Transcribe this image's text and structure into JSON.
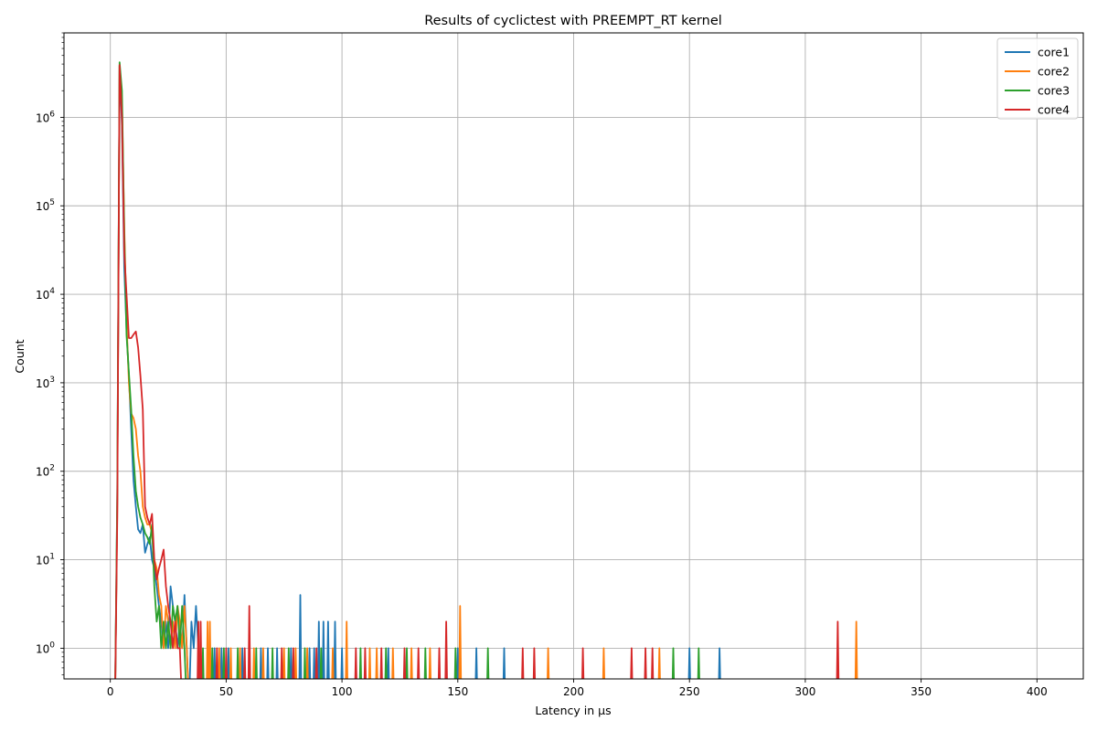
{
  "chart_data": {
    "type": "line",
    "title": "Results of cyclictest with PREEMPT_RT kernel",
    "xlabel": "Latency in µs",
    "ylabel": "Count",
    "xlim": [
      -20,
      420
    ],
    "ylim": [
      0.45,
      9000000
    ],
    "yscale": "log",
    "grid": true,
    "legend_position": "top-right",
    "x_ticks": [
      0,
      50,
      100,
      150,
      200,
      250,
      300,
      350,
      400
    ],
    "y_ticks": [
      {
        "value": 1,
        "mantissa": "10",
        "exponent": "0"
      },
      {
        "value": 10,
        "mantissa": "10",
        "exponent": "1"
      },
      {
        "value": 100,
        "mantissa": "10",
        "exponent": "2"
      },
      {
        "value": 1000,
        "mantissa": "10",
        "exponent": "3"
      },
      {
        "value": 10000,
        "mantissa": "10",
        "exponent": "4"
      },
      {
        "value": 100000,
        "mantissa": "10",
        "exponent": "5"
      },
      {
        "value": 1000000,
        "mantissa": "10",
        "exponent": "6"
      }
    ],
    "series": [
      {
        "name": "core1",
        "color": "#1f77b4",
        "curve": [
          [
            2,
            0
          ],
          [
            3,
            50
          ],
          [
            4,
            3800000
          ],
          [
            5,
            800000
          ],
          [
            6,
            20000
          ],
          [
            7,
            4000
          ],
          [
            8,
            1200
          ],
          [
            9,
            300
          ],
          [
            10,
            80
          ],
          [
            11,
            40
          ],
          [
            12,
            22
          ],
          [
            13,
            20
          ],
          [
            14,
            25
          ],
          [
            15,
            12
          ],
          [
            16,
            15
          ],
          [
            17,
            18
          ],
          [
            18,
            10
          ],
          [
            19,
            8
          ],
          [
            20,
            5
          ],
          [
            21,
            3
          ],
          [
            22,
            2
          ],
          [
            23,
            1
          ],
          [
            24,
            2
          ],
          [
            25,
            1
          ],
          [
            26,
            5
          ],
          [
            27,
            3
          ],
          [
            28,
            2
          ],
          [
            29,
            1
          ],
          [
            30,
            2
          ],
          [
            31,
            1
          ],
          [
            32,
            4
          ],
          [
            33,
            1
          ],
          [
            34,
            0
          ],
          [
            35,
            2
          ],
          [
            36,
            1
          ],
          [
            37,
            3
          ],
          [
            38,
            1
          ],
          [
            39,
            0
          ]
        ],
        "spikes": [
          [
            45,
            1
          ],
          [
            48,
            1
          ],
          [
            51,
            1
          ],
          [
            57,
            1
          ],
          [
            65,
            1
          ],
          [
            68,
            1
          ],
          [
            72,
            1
          ],
          [
            78,
            1
          ],
          [
            82,
            4
          ],
          [
            86,
            1
          ],
          [
            88,
            1
          ],
          [
            90,
            2
          ],
          [
            92,
            2
          ],
          [
            94,
            2
          ],
          [
            97,
            2
          ],
          [
            100,
            1
          ],
          [
            120,
            1
          ],
          [
            150,
            1
          ],
          [
            158,
            1
          ],
          [
            170,
            1
          ],
          [
            250,
            1
          ],
          [
            263,
            1
          ]
        ]
      },
      {
        "name": "core2",
        "color": "#ff7f0e",
        "curve": [
          [
            2,
            0
          ],
          [
            3,
            40
          ],
          [
            4,
            3900000
          ],
          [
            5,
            1500000
          ],
          [
            6,
            60000
          ],
          [
            7,
            5000
          ],
          [
            8,
            1000
          ],
          [
            9,
            450
          ],
          [
            10,
            400
          ],
          [
            11,
            300
          ],
          [
            12,
            150
          ],
          [
            13,
            100
          ],
          [
            14,
            40
          ],
          [
            15,
            30
          ],
          [
            16,
            25
          ],
          [
            17,
            25
          ],
          [
            18,
            20
          ],
          [
            19,
            10
          ],
          [
            20,
            8
          ],
          [
            21,
            4
          ],
          [
            22,
            3
          ],
          [
            23,
            1
          ],
          [
            24,
            3
          ],
          [
            25,
            2
          ],
          [
            26,
            1
          ],
          [
            27,
            2
          ],
          [
            28,
            1
          ],
          [
            29,
            3
          ],
          [
            30,
            2
          ],
          [
            31,
            1
          ],
          [
            32,
            3
          ],
          [
            33,
            1
          ],
          [
            34,
            0
          ]
        ],
        "spikes": [
          [
            42,
            2
          ],
          [
            43,
            2
          ],
          [
            47,
            1
          ],
          [
            52,
            1
          ],
          [
            56,
            1
          ],
          [
            62,
            1
          ],
          [
            66,
            1
          ],
          [
            75,
            1
          ],
          [
            80,
            1
          ],
          [
            85,
            1
          ],
          [
            96,
            1
          ],
          [
            102,
            2
          ],
          [
            112,
            1
          ],
          [
            115,
            1
          ],
          [
            122,
            1
          ],
          [
            130,
            1
          ],
          [
            138,
            1
          ],
          [
            151,
            3
          ],
          [
            189,
            1
          ],
          [
            213,
            1
          ],
          [
            237,
            1
          ],
          [
            322,
            2
          ]
        ]
      },
      {
        "name": "core3",
        "color": "#2ca02c",
        "curve": [
          [
            2,
            0
          ],
          [
            3,
            60
          ],
          [
            4,
            4200000
          ],
          [
            5,
            2000000
          ],
          [
            6,
            50000
          ],
          [
            7,
            3500
          ],
          [
            8,
            1300
          ],
          [
            9,
            500
          ],
          [
            10,
            150
          ],
          [
            11,
            60
          ],
          [
            12,
            40
          ],
          [
            13,
            30
          ],
          [
            14,
            25
          ],
          [
            15,
            20
          ],
          [
            16,
            18
          ],
          [
            17,
            15
          ],
          [
            18,
            25
          ],
          [
            19,
            5
          ],
          [
            20,
            2
          ],
          [
            21,
            3
          ],
          [
            22,
            1
          ],
          [
            23,
            2
          ],
          [
            24,
            1
          ],
          [
            25,
            2
          ],
          [
            26,
            1
          ],
          [
            27,
            3
          ],
          [
            28,
            2
          ],
          [
            29,
            3
          ],
          [
            30,
            1
          ],
          [
            31,
            3
          ],
          [
            32,
            1
          ],
          [
            33,
            0
          ]
        ],
        "spikes": [
          [
            40,
            1
          ],
          [
            44,
            1
          ],
          [
            49,
            1
          ],
          [
            55,
            1
          ],
          [
            63,
            1
          ],
          [
            70,
            1
          ],
          [
            77,
            1
          ],
          [
            84,
            1
          ],
          [
            91,
            1
          ],
          [
            108,
            1
          ],
          [
            119,
            1
          ],
          [
            128,
            1
          ],
          [
            136,
            1
          ],
          [
            149,
            1
          ],
          [
            163,
            1
          ],
          [
            243,
            1
          ],
          [
            254,
            1
          ]
        ]
      },
      {
        "name": "core4",
        "color": "#d62728",
        "curve": [
          [
            2,
            0
          ],
          [
            3,
            30
          ],
          [
            4,
            3900000
          ],
          [
            5,
            1000000
          ],
          [
            6,
            30000
          ],
          [
            7,
            10000
          ],
          [
            8,
            3200
          ],
          [
            9,
            3200
          ],
          [
            10,
            3500
          ],
          [
            11,
            3800
          ],
          [
            12,
            2500
          ],
          [
            13,
            1200
          ],
          [
            14,
            500
          ],
          [
            15,
            40
          ],
          [
            16,
            30
          ],
          [
            17,
            25
          ],
          [
            18,
            33
          ],
          [
            19,
            10
          ],
          [
            20,
            6
          ],
          [
            21,
            8
          ],
          [
            22,
            10
          ],
          [
            23,
            13
          ],
          [
            24,
            5
          ],
          [
            25,
            3
          ],
          [
            26,
            2
          ],
          [
            27,
            1
          ],
          [
            28,
            2
          ],
          [
            29,
            1
          ],
          [
            30,
            1
          ],
          [
            31,
            0
          ]
        ],
        "spikes": [
          [
            38,
            2
          ],
          [
            39,
            2
          ],
          [
            46,
            1
          ],
          [
            50,
            1
          ],
          [
            58,
            1
          ],
          [
            60,
            3
          ],
          [
            74,
            1
          ],
          [
            79,
            1
          ],
          [
            89,
            1
          ],
          [
            106,
            1
          ],
          [
            110,
            1
          ],
          [
            117,
            1
          ],
          [
            127,
            1
          ],
          [
            133,
            1
          ],
          [
            142,
            1
          ],
          [
            145,
            2
          ],
          [
            178,
            1
          ],
          [
            183,
            1
          ],
          [
            204,
            1
          ],
          [
            225,
            1
          ],
          [
            231,
            1
          ],
          [
            234,
            1
          ],
          [
            314,
            2
          ]
        ]
      }
    ]
  }
}
